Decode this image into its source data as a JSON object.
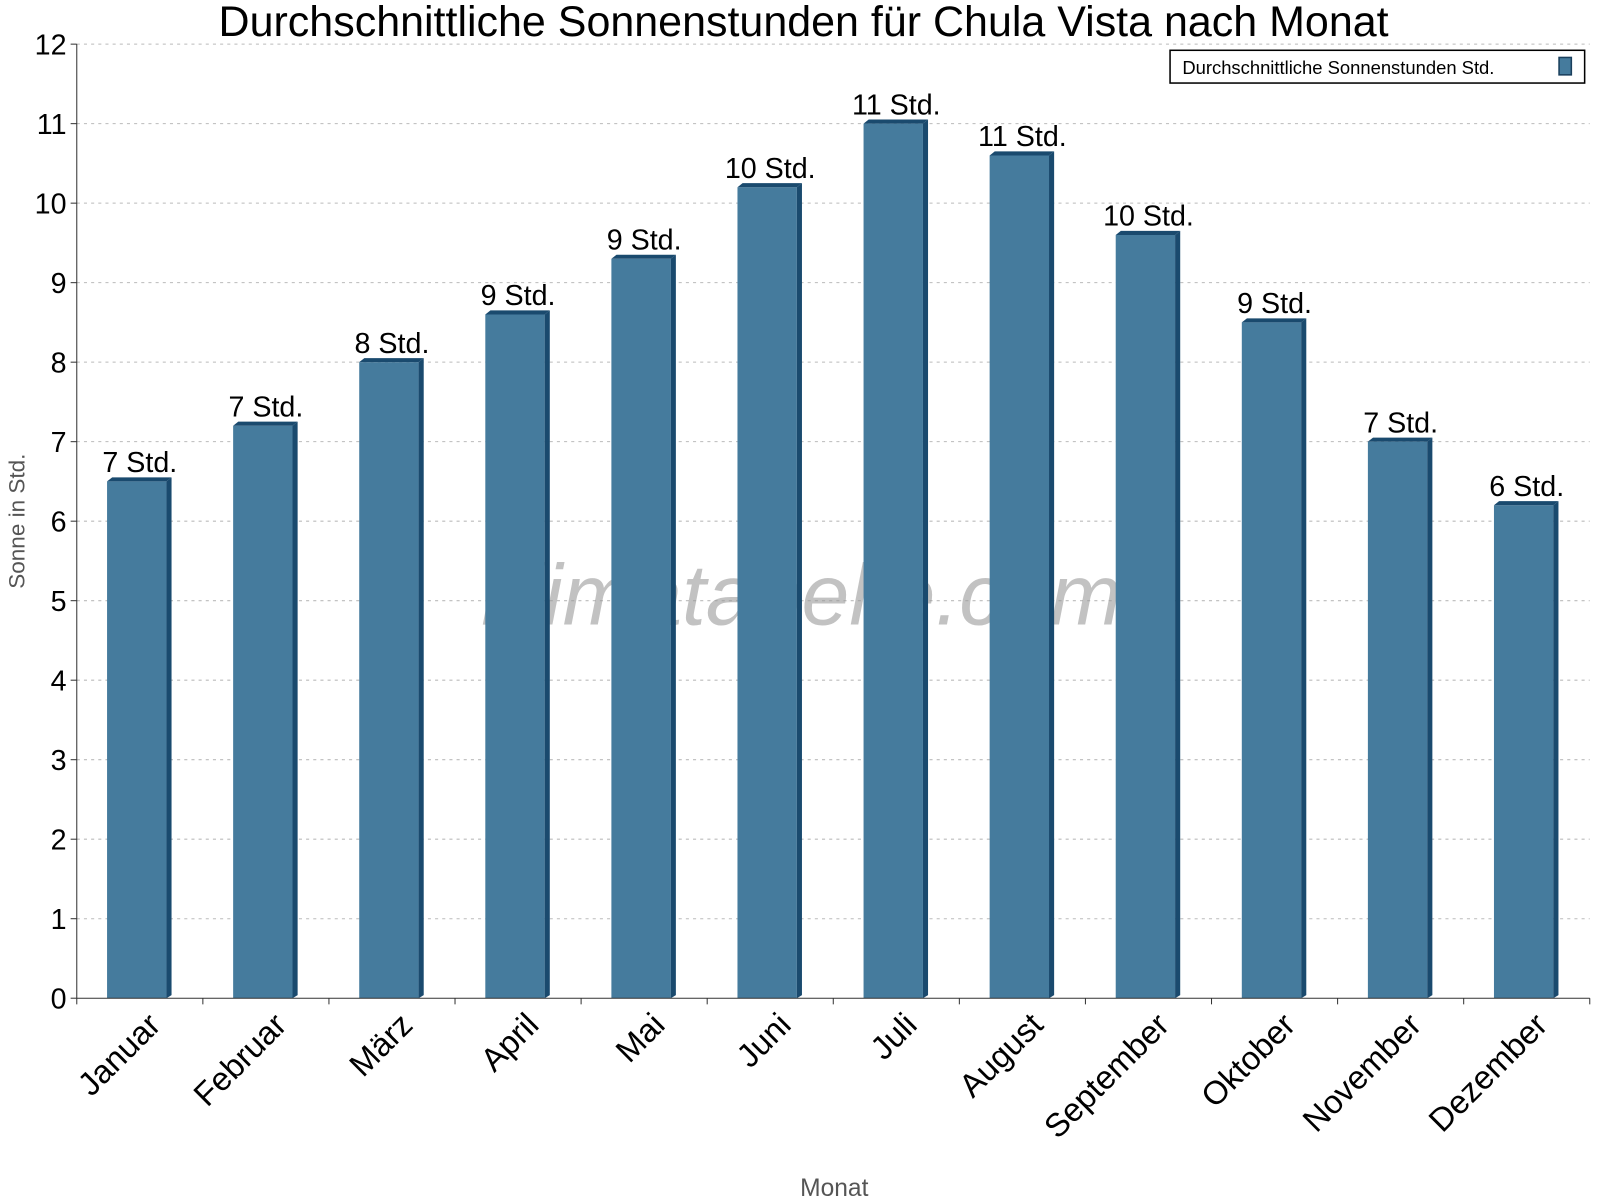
{
  "chart_data": {
    "type": "bar",
    "title": "Durchschnittliche Sonnenstunden für Chula Vista nach Monat",
    "xlabel": "Monat",
    "ylabel": "Sonne in Std.",
    "ylim": [
      0,
      12
    ],
    "yticks": [
      0,
      1,
      2,
      3,
      4,
      5,
      6,
      7,
      8,
      9,
      10,
      11,
      12
    ],
    "grid": true,
    "legend_position": "top-right",
    "categories": [
      "Januar",
      "Februar",
      "März",
      "April",
      "Mai",
      "Juni",
      "Juli",
      "August",
      "September",
      "Oktober",
      "November",
      "Dezember"
    ],
    "series": [
      {
        "name": "Durchschnittliche Sonnenstunden Std.",
        "color": "#457b9d",
        "values": [
          6.5,
          7.2,
          8.0,
          8.6,
          9.3,
          10.2,
          11.0,
          10.6,
          9.6,
          8.5,
          7.0,
          6.2
        ],
        "data_labels": [
          "7 Std.",
          "7 Std.",
          "8 Std.",
          "9 Std.",
          "9 Std.",
          "10 Std.",
          "11 Std.",
          "11 Std.",
          "10 Std.",
          "9 Std.",
          "7 Std.",
          "6 Std."
        ]
      }
    ],
    "watermark": "klimatabelle.com"
  }
}
